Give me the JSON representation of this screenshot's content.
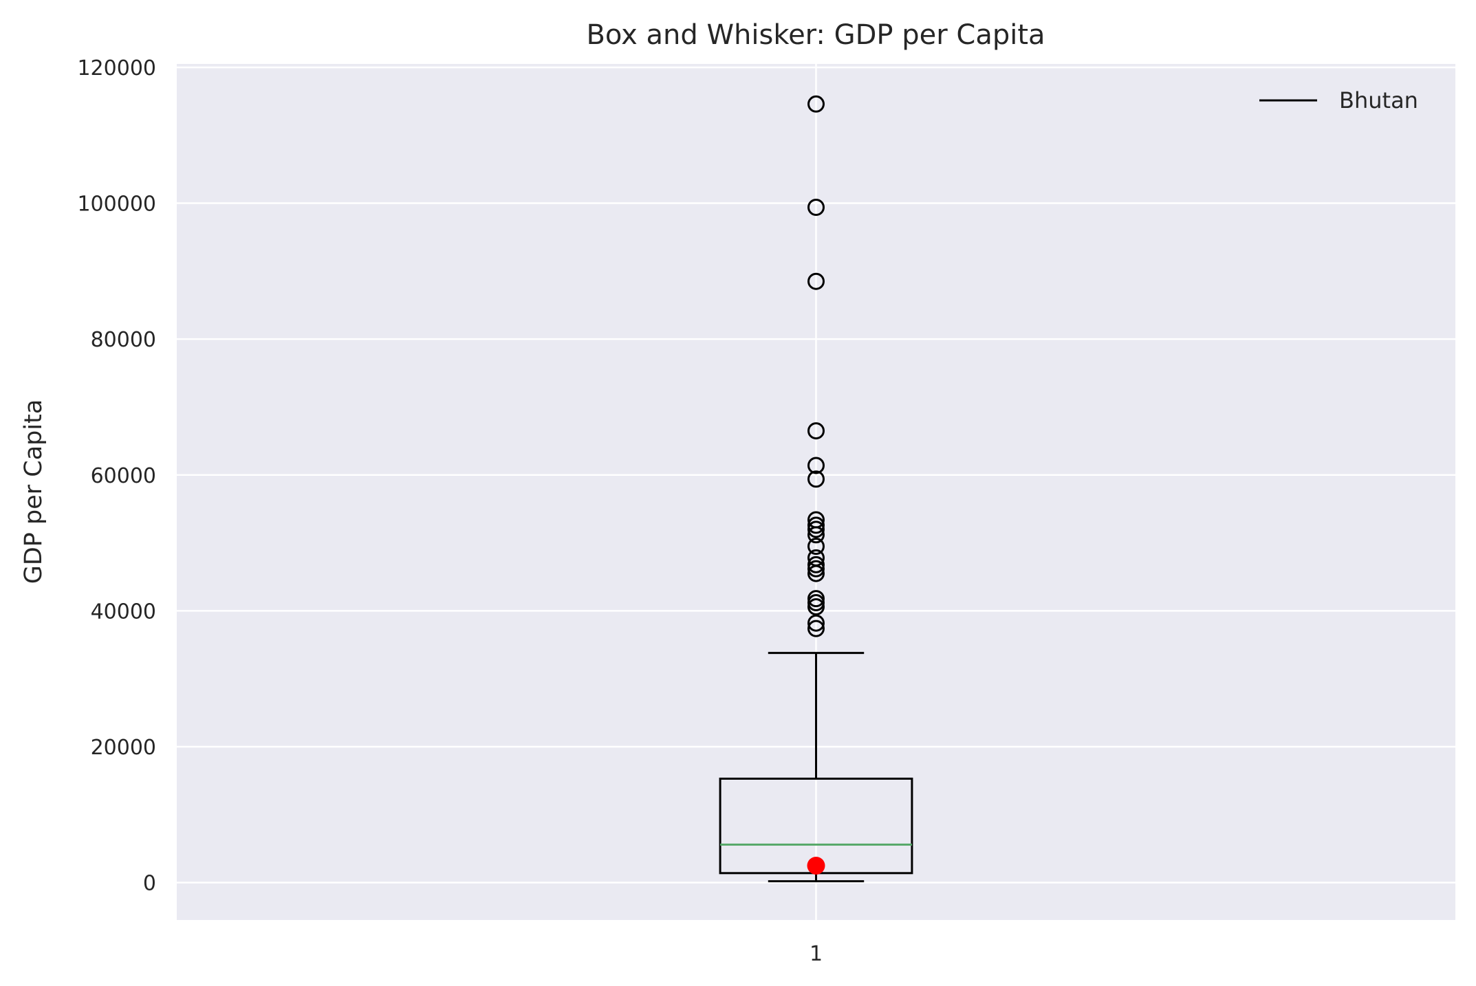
{
  "chart_data": {
    "type": "box",
    "title": "Box and Whisker: GDP per Capita",
    "xlabel": "",
    "ylabel": "GDP per Capita",
    "ylim": [
      -5500,
      120500
    ],
    "xlim": [
      0.5,
      1.5
    ],
    "yticks": [
      0,
      20000,
      40000,
      60000,
      80000,
      100000,
      120000
    ],
    "yticklabels": [
      "0",
      "20000",
      "40000",
      "60000",
      "80000",
      "100000",
      "120000"
    ],
    "categories": [
      "1"
    ],
    "box": {
      "position": 1,
      "whisker_low": 200,
      "q1": 1400,
      "median": 5600,
      "q3": 15300,
      "whisker_high": 33800
    },
    "outliers": [
      37400,
      38200,
      40600,
      41200,
      41800,
      45500,
      46200,
      46800,
      47800,
      49500,
      51200,
      52000,
      52600,
      53400,
      59400,
      61400,
      66500,
      88500,
      99400,
      114600
    ],
    "highlight": {
      "label": "Bhutan",
      "value": 2500,
      "color": "#ff0000"
    },
    "legend": {
      "entries": [
        "Bhutan"
      ],
      "placement": "top-right"
    },
    "colors": {
      "plot_background": "#eaeaf2",
      "grid": "#ffffff",
      "box": "#000000",
      "median": "#55a868",
      "outlier_edge": "#000000"
    },
    "grid": true
  }
}
